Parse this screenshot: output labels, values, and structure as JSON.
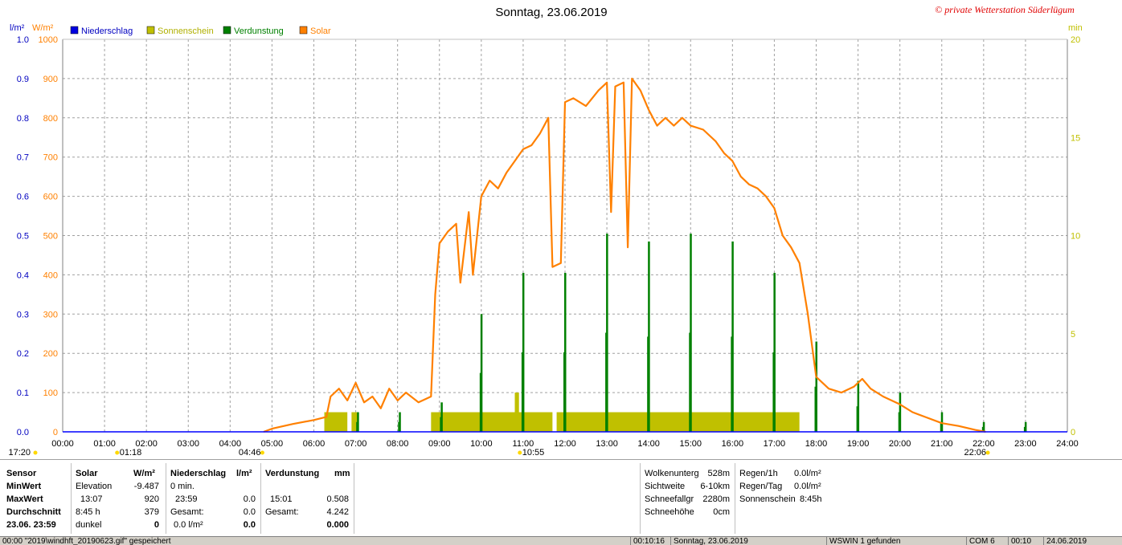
{
  "chart_data": {
    "type": "bar",
    "title": "Sonntag, 23.06.2019",
    "copyright": "© private Wetterstation Süderlügum",
    "legend": [
      {
        "name": "Niederschlag",
        "color": "#0000e0"
      },
      {
        "name": "Sonnenschein",
        "color": "#c0c000"
      },
      {
        "name": "Verdunstung",
        "color": "#008000"
      },
      {
        "name": "Solar",
        "color": "#ff8000"
      }
    ],
    "legend_position": "top-left",
    "grid": true,
    "y_left_outer": {
      "unit": "l/m²",
      "range": [
        0,
        1.0
      ],
      "ticks": [
        "0.0",
        "0.1",
        "0.2",
        "0.3",
        "0.4",
        "0.5",
        "0.6",
        "0.7",
        "0.8",
        "0.9",
        "1.0"
      ],
      "color": "#0000c0"
    },
    "y_left_inner": {
      "unit": "W/m²",
      "range": [
        0,
        1000
      ],
      "ticks": [
        "0",
        "100",
        "200",
        "300",
        "400",
        "500",
        "600",
        "700",
        "800",
        "900",
        "1000"
      ],
      "color": "#ff8000"
    },
    "y_right": {
      "unit": "min",
      "range": [
        0,
        20
      ],
      "ticks": [
        "0",
        "5",
        "10",
        "15",
        "20"
      ],
      "color": "#c0c000"
    },
    "x_ticks": [
      "00:00",
      "01:00",
      "02:00",
      "03:00",
      "04:00",
      "05:00",
      "06:00",
      "07:00",
      "08:00",
      "09:00",
      "10:00",
      "11:00",
      "12:00",
      "13:00",
      "14:00",
      "15:00",
      "16:00",
      "17:00",
      "18:00",
      "19:00",
      "20:00",
      "21:00",
      "22:00",
      "23:00",
      "24:00"
    ],
    "sun_markers": [
      {
        "label": "17:20",
        "hour": -0.7
      },
      {
        "label": "01:18",
        "hour": 1.3
      },
      {
        "label": "04:46",
        "hour": 4.77
      },
      {
        "label": "10:55",
        "hour": 10.92
      },
      {
        "label": "22:06",
        "hour": 22.1
      }
    ],
    "solar_series": {
      "name": "Solar",
      "points": [
        [
          4.8,
          0
        ],
        [
          5.0,
          8
        ],
        [
          5.5,
          20
        ],
        [
          6.0,
          30
        ],
        [
          6.3,
          38
        ],
        [
          6.4,
          90
        ],
        [
          6.6,
          110
        ],
        [
          6.8,
          80
        ],
        [
          7.0,
          125
        ],
        [
          7.2,
          75
        ],
        [
          7.4,
          90
        ],
        [
          7.6,
          60
        ],
        [
          7.8,
          110
        ],
        [
          8.0,
          80
        ],
        [
          8.2,
          100
        ],
        [
          8.5,
          75
        ],
        [
          8.8,
          90
        ],
        [
          8.9,
          350
        ],
        [
          9.0,
          480
        ],
        [
          9.2,
          510
        ],
        [
          9.4,
          530
        ],
        [
          9.5,
          380
        ],
        [
          9.7,
          560
        ],
        [
          9.8,
          400
        ],
        [
          10.0,
          600
        ],
        [
          10.2,
          640
        ],
        [
          10.4,
          620
        ],
        [
          10.6,
          660
        ],
        [
          10.8,
          690
        ],
        [
          11.0,
          720
        ],
        [
          11.2,
          730
        ],
        [
          11.4,
          760
        ],
        [
          11.6,
          800
        ],
        [
          11.7,
          420
        ],
        [
          11.9,
          430
        ],
        [
          12.0,
          840
        ],
        [
          12.2,
          850
        ],
        [
          12.5,
          830
        ],
        [
          12.8,
          870
        ],
        [
          13.0,
          890
        ],
        [
          13.1,
          560
        ],
        [
          13.2,
          880
        ],
        [
          13.4,
          890
        ],
        [
          13.5,
          470
        ],
        [
          13.6,
          900
        ],
        [
          13.8,
          870
        ],
        [
          14.0,
          820
        ],
        [
          14.2,
          780
        ],
        [
          14.4,
          800
        ],
        [
          14.6,
          780
        ],
        [
          14.8,
          800
        ],
        [
          15.0,
          780
        ],
        [
          15.3,
          770
        ],
        [
          15.6,
          740
        ],
        [
          15.8,
          710
        ],
        [
          16.0,
          690
        ],
        [
          16.2,
          650
        ],
        [
          16.4,
          630
        ],
        [
          16.6,
          620
        ],
        [
          16.8,
          600
        ],
        [
          17.0,
          570
        ],
        [
          17.2,
          500
        ],
        [
          17.4,
          470
        ],
        [
          17.6,
          430
        ],
        [
          17.8,
          300
        ],
        [
          18.0,
          140
        ],
        [
          18.3,
          110
        ],
        [
          18.6,
          100
        ],
        [
          18.9,
          115
        ],
        [
          19.1,
          135
        ],
        [
          19.3,
          110
        ],
        [
          19.6,
          90
        ],
        [
          20.0,
          70
        ],
        [
          20.3,
          50
        ],
        [
          20.6,
          38
        ],
        [
          21.0,
          22
        ],
        [
          21.4,
          15
        ],
        [
          21.8,
          5
        ],
        [
          22.05,
          0
        ]
      ]
    },
    "sunshine_series": {
      "name": "Sonnenschein",
      "unit": "min",
      "blocks": [
        [
          6.25,
          6.8,
          1.0
        ],
        [
          6.9,
          7.05,
          1.0
        ],
        [
          8.8,
          11.7,
          1.0
        ],
        [
          10.8,
          10.9,
          2.0
        ],
        [
          11.8,
          17.6,
          1.0
        ]
      ]
    },
    "evaporation_series": {
      "name": "Verdunstung",
      "bars": [
        [
          7.05,
          0.05
        ],
        [
          8.05,
          0.05
        ],
        [
          9.05,
          0.075
        ],
        [
          10.0,
          0.3
        ],
        [
          11.0,
          0.405
        ],
        [
          12.0,
          0.405
        ],
        [
          13.0,
          0.505
        ],
        [
          14.0,
          0.485
        ],
        [
          15.0,
          0.505
        ],
        [
          16.0,
          0.485
        ],
        [
          17.0,
          0.405
        ],
        [
          18.0,
          0.23
        ],
        [
          19.0,
          0.13
        ],
        [
          20.0,
          0.1
        ],
        [
          21.0,
          0.05
        ],
        [
          22.0,
          0.025
        ],
        [
          23.0,
          0.025
        ]
      ]
    },
    "precipitation_series": {
      "name": "Niederschlag",
      "bars": []
    }
  },
  "stats": {
    "headers": {
      "sensor": "Sensor",
      "solar": "Solar",
      "solar_unit": "W/m²",
      "rain": "Niederschlag",
      "rain_unit": "l/m²",
      "evap": "Verdunstung",
      "evap_unit": "mm"
    },
    "rows": [
      {
        "label": "MinWert",
        "solar_desc": "Elevation",
        "solar_val": "-9.487",
        "rain_desc": "0 min.",
        "rain_val": "",
        "evap_desc": "",
        "evap_val": ""
      },
      {
        "label": "MaxWert",
        "solar_desc": "13:07",
        "solar_val": "920",
        "rain_desc": "23:59",
        "rain_val": "0.0",
        "evap_desc": "15:01",
        "evap_val": "0.508"
      },
      {
        "label": "Durchschnitt",
        "solar_desc": "8:45 h",
        "solar_val": "379",
        "rain_desc": "Gesamt:",
        "rain_val": "0.0",
        "evap_desc": "Gesamt:",
        "evap_val": "4.242"
      },
      {
        "label": "23.06. 23:59",
        "solar_desc": "dunkel",
        "solar_val": "0",
        "rain_desc": "0.0 l/m²",
        "rain_val": "0.0",
        "evap_desc": "",
        "evap_val": "0.000"
      }
    ],
    "weather": [
      {
        "label": "Wolkenunterg",
        "value": "528m"
      },
      {
        "label": "Sichtweite",
        "value": "6-10km"
      },
      {
        "label": "Schneefallgr",
        "value": "2280m"
      },
      {
        "label": "Schneehöhe",
        "value": "0cm"
      }
    ],
    "rain": [
      {
        "label": "Regen/1h",
        "value": "0.0l/m²"
      },
      {
        "label": "Regen/Tag",
        "value": "0.0l/m²"
      },
      {
        "label": "Sonnenschein",
        "value": "8:45h"
      }
    ]
  },
  "statusbar": {
    "file": "00:00 \"2019\\windhft_20190623.gif\" gespeichert",
    "time": "00:10:16",
    "date": "Sonntag, 23.06.2019",
    "wsw": "WSWIN 1 gefunden",
    "com": "COM 6",
    "clock": "00:10",
    "today": "24.06.2019"
  }
}
